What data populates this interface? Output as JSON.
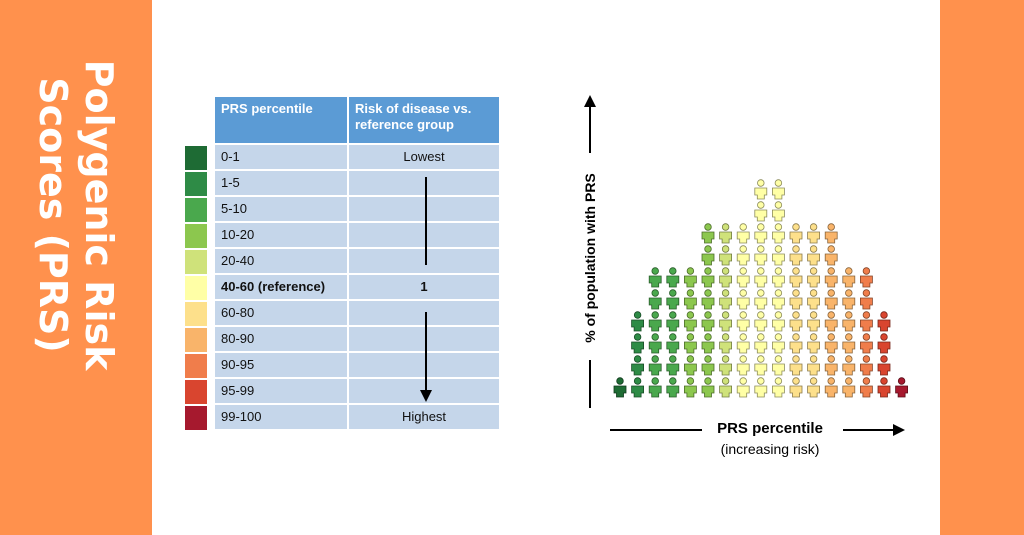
{
  "title": {
    "line1": "Polygenic Risk",
    "line2": "Scores (PRS)"
  },
  "colors": {
    "band": "#ff914d",
    "header": "#5b9bd5",
    "row": "#c5d6ea",
    "risk_scale": [
      "#1e6b34",
      "#2e8b46",
      "#4aa84d",
      "#8cc74e",
      "#cfe27a",
      "#ffffa6",
      "#fde08b",
      "#f9b46a",
      "#f07d4b",
      "#d9452f",
      "#a6192e"
    ]
  },
  "table": {
    "header": {
      "col1": "PRS percentile",
      "col2": "Risk of disease vs. reference group"
    },
    "rows": [
      {
        "percentile": "0-1",
        "risk": "Lowest"
      },
      {
        "percentile": "1-5",
        "risk": ""
      },
      {
        "percentile": "5-10",
        "risk": ""
      },
      {
        "percentile": "10-20",
        "risk": ""
      },
      {
        "percentile": "20-40",
        "risk": ""
      },
      {
        "percentile": "40-60 (reference)",
        "risk": "1"
      },
      {
        "percentile": "60-80",
        "risk": ""
      },
      {
        "percentile": "80-90",
        "risk": ""
      },
      {
        "percentile": "90-95",
        "risk": ""
      },
      {
        "percentile": "95-99",
        "risk": ""
      },
      {
        "percentile": "99-100",
        "risk": "Highest"
      }
    ]
  },
  "diagram": {
    "y_axis_label": "% of population with PRS",
    "x_axis_label": "PRS percentile",
    "x_axis_sublabel": "(increasing risk)",
    "columns": [
      {
        "color_index": 0,
        "count": 1
      },
      {
        "color_index": 1,
        "count": 4
      },
      {
        "color_index": 2,
        "count": 6
      },
      {
        "color_index": 2,
        "count": 6
      },
      {
        "color_index": 3,
        "count": 6
      },
      {
        "color_index": 3,
        "count": 8
      },
      {
        "color_index": 4,
        "count": 8
      },
      {
        "color_index": 5,
        "count": 8
      },
      {
        "color_index": 5,
        "count": 10
      },
      {
        "color_index": 5,
        "count": 10
      },
      {
        "color_index": 6,
        "count": 8
      },
      {
        "color_index": 6,
        "count": 8
      },
      {
        "color_index": 7,
        "count": 8
      },
      {
        "color_index": 7,
        "count": 6
      },
      {
        "color_index": 8,
        "count": 6
      },
      {
        "color_index": 9,
        "count": 4
      },
      {
        "color_index": 10,
        "count": 1
      }
    ]
  }
}
